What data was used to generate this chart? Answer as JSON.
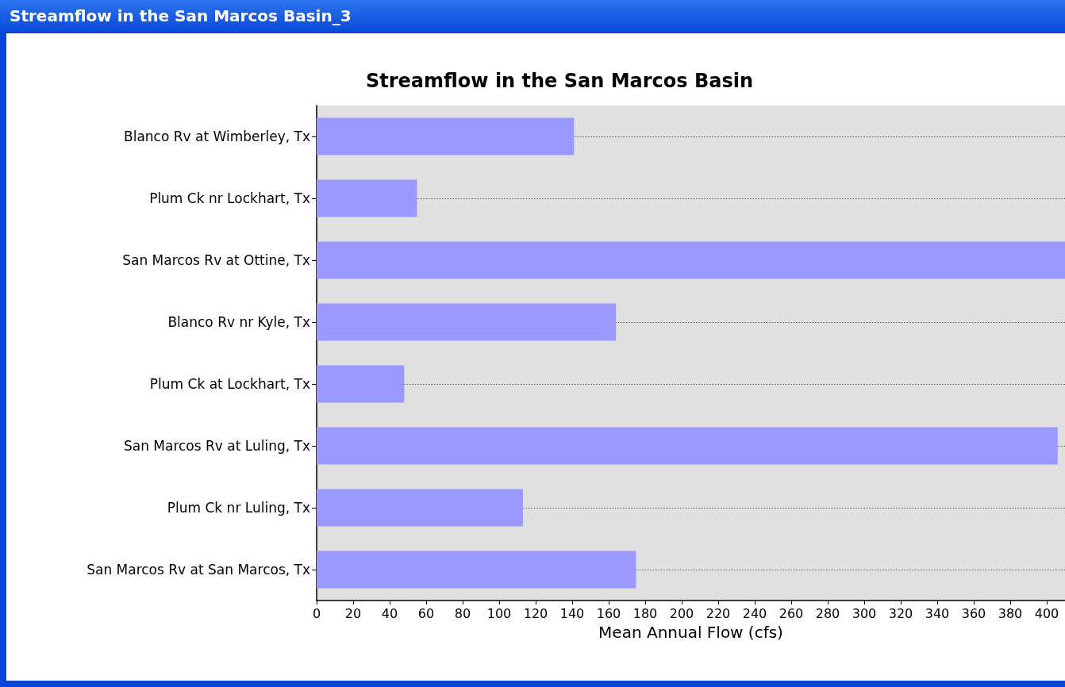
{
  "chart_data": {
    "type": "bar",
    "orientation": "horizontal",
    "title": "Streamflow in the San Marcos Basin",
    "xlabel": "Mean Annual Flow (cfs)",
    "annotations": [
      "Streamflow in the San Marcos Basin_3"
    ],
    "categories": [
      "Blanco Rv at Wimberley, Tx",
      "Plum Ck nr Lockhart, Tx",
      "San Marcos Rv at Ottine, Tx",
      "Blanco Rv nr Kyle, Tx",
      "Plum Ck at Lockhart, Tx",
      "San Marcos Rv at Luling, Tx",
      "Plum Ck nr Luling, Tx",
      "San Marcos Rv at San Marcos, Tx"
    ],
    "values": [
      141,
      55,
      410,
      164,
      48,
      406,
      113,
      175
    ],
    "color": "#9999ff",
    "xlim": [
      0,
      410
    ],
    "xticks": [
      0,
      20,
      40,
      60,
      80,
      100,
      120,
      140,
      160,
      180,
      200,
      220,
      240,
      260,
      280,
      300,
      320,
      340,
      360,
      380,
      400
    ],
    "grid": "y"
  }
}
